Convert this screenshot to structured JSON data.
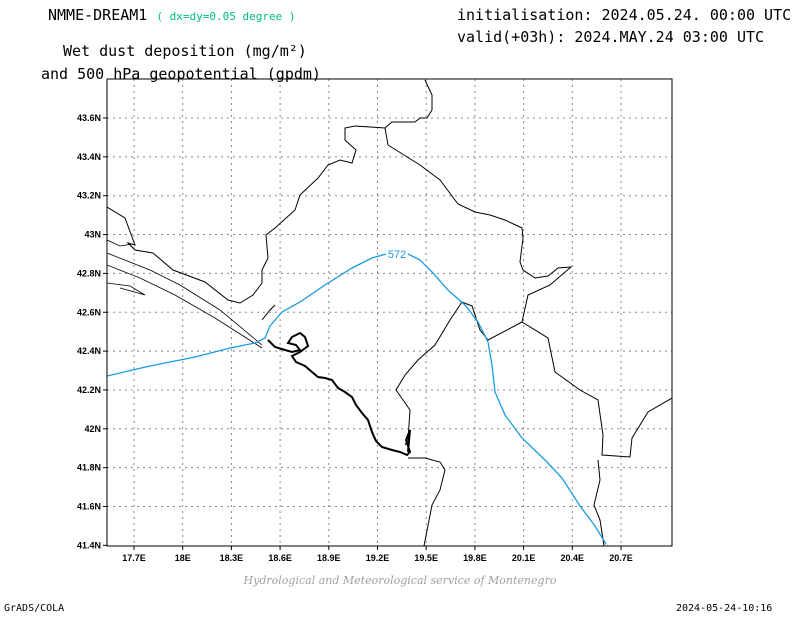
{
  "header": {
    "model": "NMME-DREAM1",
    "resolution": "( dx=dy=0.05 degree )",
    "init": "initialisation: 2024.05.24. 00:00 UTC",
    "valid": "valid(+03h): 2024.MAY.24 03:00 UTC",
    "title_line1": "Wet dust deposition (mg/m²)",
    "title_line2": "and 500 hPa geopotential (gpdm)"
  },
  "map": {
    "lon_labels": [
      "17.7E",
      "18E",
      "18.3E",
      "18.6E",
      "18.9E",
      "19.2E",
      "19.5E",
      "19.8E",
      "20.1E",
      "20.4E",
      "20.7E"
    ],
    "lat_labels": [
      "43.6N",
      "43.4N",
      "43.2N",
      "43N",
      "42.8N",
      "42.6N",
      "42.4N",
      "42.2N",
      "42N",
      "41.8N",
      "41.6N",
      "41.4N"
    ],
    "contour_label": "572",
    "contour_color": "#1a9be0"
  },
  "footer": {
    "credit": "Hydrological and Meteorological service of Montenegro",
    "software": "GrADS/COLA",
    "timestamp": "2024-05-24-10:16"
  }
}
